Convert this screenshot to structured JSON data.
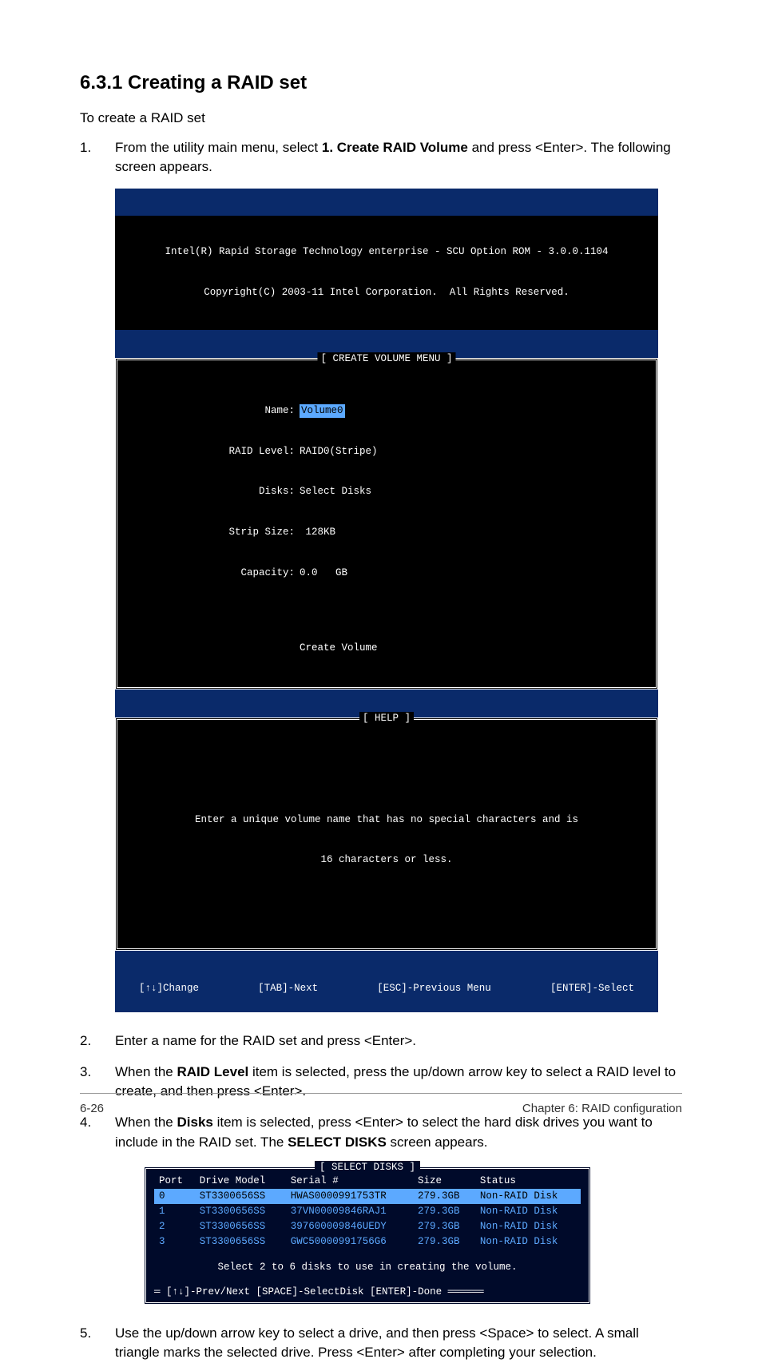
{
  "colors": {
    "term_bg": "#0a2a6a",
    "term_header_bg": "#000000",
    "term_text": "#ffffff",
    "term_cyan": "#5ca9ff",
    "hl_bg": "#5ca9ff",
    "term2_bg": "#000a2a"
  },
  "heading": "6.3.1     Creating a RAID set",
  "intro": "To create a RAID set",
  "steps": {
    "s1_num": "1.",
    "s1_a": "From the utility main menu, select ",
    "s1_bold": "1. Create RAID Volume",
    "s1_b": " and press <Enter>. The following screen appears.",
    "s2_num": "2.",
    "s2": "Enter a name for the RAID set and press <Enter>.",
    "s3_num": "3.",
    "s3_a": "When the ",
    "s3_bold": "RAID Level",
    "s3_b": " item is selected, press the up/down arrow key to select a RAID level to create, and then press <Enter>.",
    "s4_num": "4.",
    "s4_a": "When the ",
    "s4_bold": "Disks",
    "s4_b": " item is selected, press <Enter> to select the hard disk drives you want to include in the RAID set. The ",
    "s4_bold2": "SELECT DISKS",
    "s4_c": " screen appears.",
    "s5_num": "5.",
    "s5": "Use the up/down arrow key to select a drive, and then press <Space> to select. A small triangle marks the selected drive. Press <Enter> after completing your selection."
  },
  "term1": {
    "header_l1": "Intel(R) Rapid Storage Technology enterprise - SCU Option ROM - 3.0.0.1104",
    "header_l2": "Copyright(C) 2003-11 Intel Corporation.  All Rights Reserved.",
    "box1_title": "[ CREATE VOLUME MENU ]",
    "fields": {
      "name_label": "Name:",
      "name_value": "Volume0",
      "raid_label": "RAID Level:",
      "raid_value": "RAID0(Stripe)",
      "disks_label": "Disks:",
      "disks_value": "Select Disks",
      "strip_label": "Strip Size:",
      "strip_value": " 128KB",
      "cap_label": "Capacity:",
      "cap_value": "0.0   GB",
      "create": "Create Volume"
    },
    "box2_title": "[ HELP ]",
    "help_l1": "Enter a unique volume name that has no special characters and is",
    "help_l2": "16 characters or less.",
    "footer": {
      "f1": "[↑↓]Change",
      "f2": "[TAB]-Next",
      "f3": "[ESC]-Previous Menu",
      "f4": "[ENTER]-Select"
    }
  },
  "term2": {
    "title": "[ SELECT DISKS ]",
    "headers": {
      "c1": "Port",
      "c2": "Drive Model",
      "c3": "Serial #",
      "c4": "Size",
      "c5": "Status"
    },
    "rows": [
      {
        "port": "0",
        "model": "ST3300656SS",
        "serial": "HWAS0000991753TR",
        "size": "279.3GB",
        "status": "Non-RAID Disk",
        "hl": true
      },
      {
        "port": "1",
        "model": "ST3300656SS",
        "serial": "37VN00009846RAJ1",
        "size": "279.3GB",
        "status": "Non-RAID Disk",
        "hl": false
      },
      {
        "port": "2",
        "model": "ST3300656SS",
        "serial": "397600009846UEDY",
        "size": "279.3GB",
        "status": "Non-RAID Disk",
        "hl": false
      },
      {
        "port": "3",
        "model": "ST3300656SS",
        "serial": "GWC50000991756G6",
        "size": "279.3GB",
        "status": "Non-RAID Disk",
        "hl": false
      }
    ],
    "msg": "Select 2 to 6 disks to use in creating the volume.",
    "footer": "[↑↓]-Prev/Next [SPACE]-SelectDisk [ENTER]-Done"
  },
  "footer": {
    "left": "6-26",
    "right": "Chapter 6: RAID configuration"
  }
}
